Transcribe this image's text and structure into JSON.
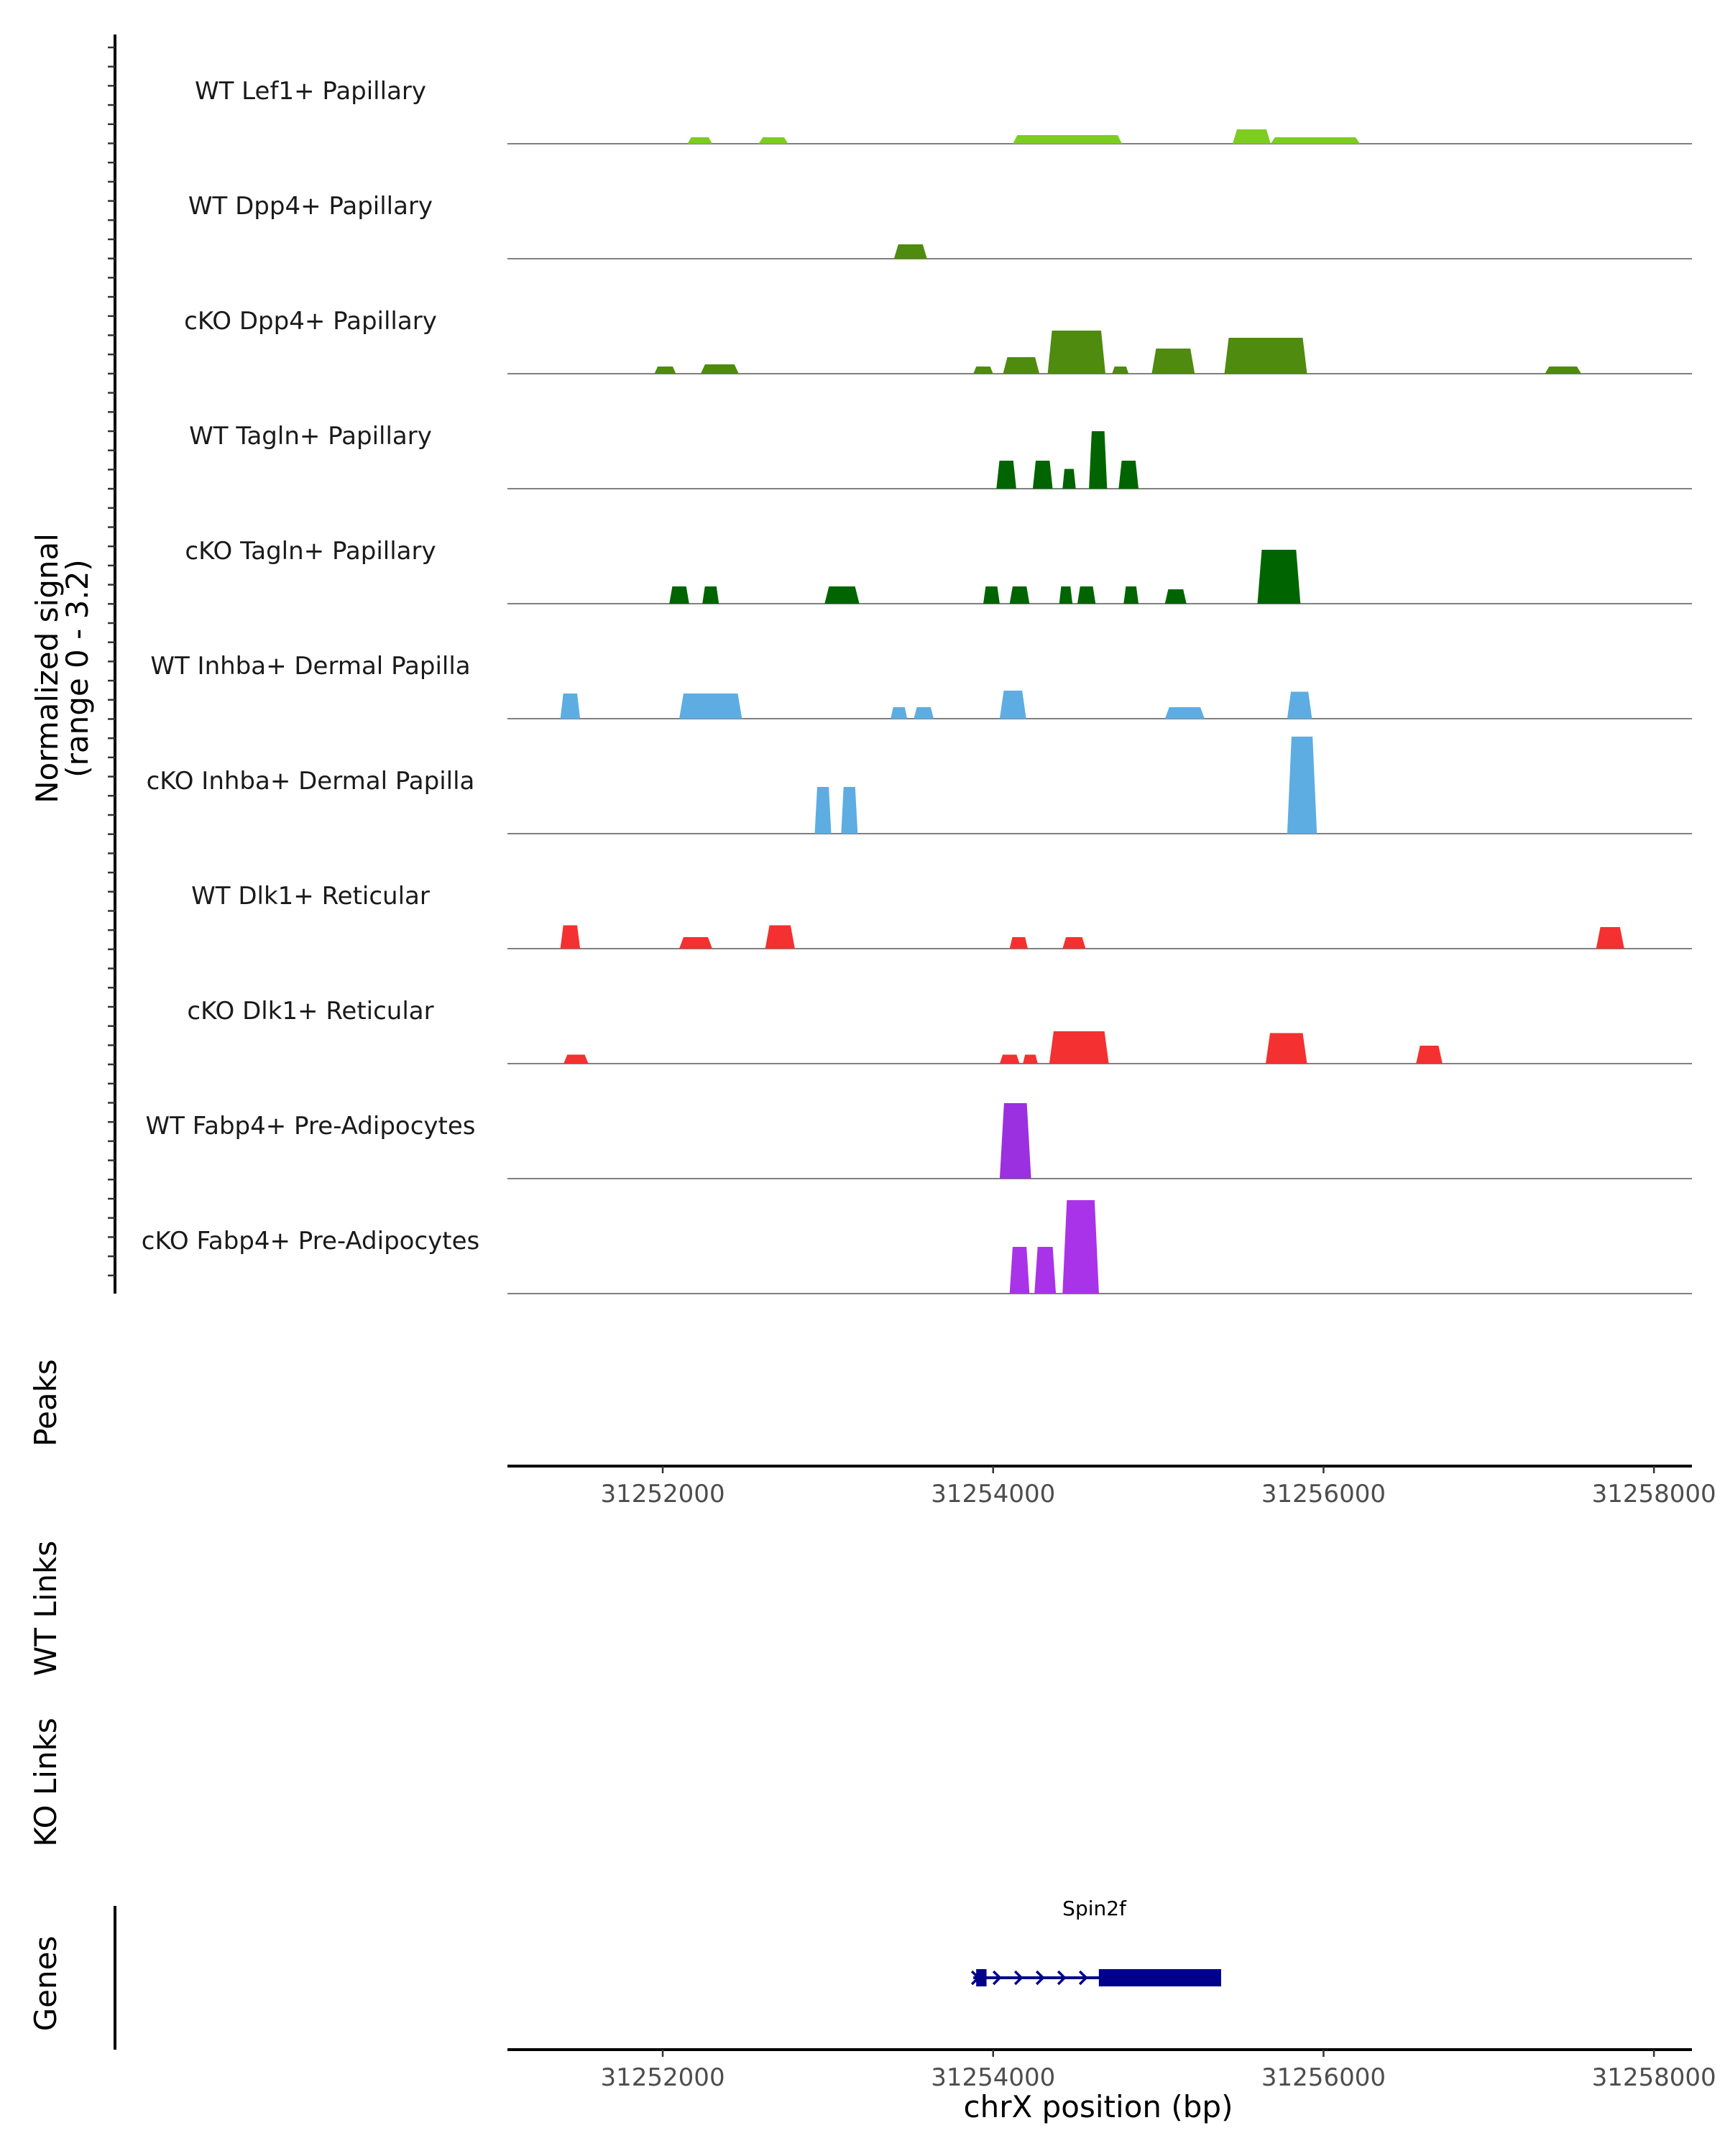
{
  "chart_data": {
    "type": "area",
    "title": "",
    "ylabel": "Normalized signal",
    "ylabel_range": "(range 0 - 3.2)",
    "ylim": [
      0,
      3.2
    ],
    "xlabel": "chrX position (bp)",
    "xlim": [
      31251060,
      31258230
    ],
    "xticks": [
      31252000,
      31254000,
      31256000,
      31258000
    ],
    "xtick_labels": [
      "31252000",
      "31254000",
      "31256000",
      "31258000"
    ],
    "tracks": [
      {
        "name": "WT Lef1+ Papillary",
        "color": "#7CCD1F",
        "peaks": [
          [
            31252150,
            31252300,
            0.18
          ],
          [
            31252580,
            31252760,
            0.18
          ],
          [
            31254120,
            31254780,
            0.24
          ],
          [
            31255450,
            31255680,
            0.4
          ],
          [
            31255680,
            31256220,
            0.18
          ]
        ]
      },
      {
        "name": "WT Dpp4+ Papillary",
        "color": "#4E8B0E",
        "peaks": [
          [
            31253400,
            31253600,
            0.4
          ]
        ]
      },
      {
        "name": "cKO Dpp4+ Papillary",
        "color": "#4E8B0E",
        "peaks": [
          [
            31251950,
            31252080,
            0.2
          ],
          [
            31252230,
            31252460,
            0.26
          ],
          [
            31253880,
            31254000,
            0.2
          ],
          [
            31254060,
            31254280,
            0.46
          ],
          [
            31254330,
            31254680,
            1.2
          ],
          [
            31254720,
            31254820,
            0.2
          ],
          [
            31254960,
            31255220,
            0.7
          ],
          [
            31255400,
            31255900,
            1.0
          ],
          [
            31257340,
            31257560,
            0.2
          ]
        ]
      },
      {
        "name": "WT Tagln+ Papillary",
        "color": "#006400",
        "peaks": [
          [
            31254020,
            31254140,
            0.78
          ],
          [
            31254240,
            31254360,
            0.78
          ],
          [
            31254420,
            31254500,
            0.55
          ],
          [
            31254580,
            31254690,
            1.6
          ],
          [
            31254760,
            31254880,
            0.78
          ]
        ]
      },
      {
        "name": "cKO Tagln+ Papillary",
        "color": "#006400",
        "peaks": [
          [
            31252040,
            31252160,
            0.48
          ],
          [
            31252240,
            31252340,
            0.48
          ],
          [
            31252980,
            31253190,
            0.48
          ],
          [
            31253940,
            31254040,
            0.48
          ],
          [
            31254100,
            31254220,
            0.48
          ],
          [
            31254400,
            31254480,
            0.48
          ],
          [
            31254510,
            31254620,
            0.48
          ],
          [
            31254790,
            31254880,
            0.48
          ],
          [
            31255040,
            31255170,
            0.4
          ],
          [
            31255600,
            31255860,
            1.5
          ]
        ]
      },
      {
        "name": "WT Inhba+ Dermal Papilla",
        "color": "#5DADE2",
        "peaks": [
          [
            31251380,
            31251500,
            0.7
          ],
          [
            31252100,
            31252480,
            0.7
          ],
          [
            31253380,
            31253480,
            0.32
          ],
          [
            31253520,
            31253640,
            0.32
          ],
          [
            31254040,
            31254200,
            0.78
          ],
          [
            31255040,
            31255280,
            0.32
          ],
          [
            31255780,
            31255930,
            0.75
          ]
        ]
      },
      {
        "name": "cKO Inhba+ Dermal Papilla",
        "color": "#5DADE2",
        "peaks": [
          [
            31252920,
            31253020,
            1.3
          ],
          [
            31253080,
            31253180,
            1.3
          ],
          [
            31255780,
            31255960,
            2.7
          ]
        ]
      },
      {
        "name": "WT Dlk1+ Reticular",
        "color": "#F53030",
        "peaks": [
          [
            31251380,
            31251500,
            0.65
          ],
          [
            31252100,
            31252300,
            0.32
          ],
          [
            31252620,
            31252800,
            0.65
          ],
          [
            31254100,
            31254210,
            0.32
          ],
          [
            31254420,
            31254560,
            0.32
          ],
          [
            31257650,
            31257820,
            0.6
          ]
        ]
      },
      {
        "name": "cKO Dlk1+ Reticular",
        "color": "#F53030",
        "peaks": [
          [
            31251400,
            31251550,
            0.25
          ],
          [
            31254040,
            31254160,
            0.25
          ],
          [
            31254180,
            31254270,
            0.25
          ],
          [
            31254340,
            31254700,
            0.9
          ],
          [
            31255650,
            31255900,
            0.85
          ],
          [
            31256560,
            31256720,
            0.5
          ]
        ]
      },
      {
        "name": "WT Fabp4+ Pre-Adipocytes",
        "color": "#9B30E0",
        "peaks": [
          [
            31254040,
            31254230,
            2.1
          ]
        ]
      },
      {
        "name": "cKO Fabp4+ Pre-Adipocytes",
        "color": "#A933E8",
        "peaks": [
          [
            31254100,
            31254220,
            1.3
          ],
          [
            31254250,
            31254380,
            1.3
          ],
          [
            31254420,
            31254640,
            2.6
          ]
        ]
      }
    ],
    "panels": {
      "peaks_label": "Peaks",
      "wt_links_label": "WT Links",
      "ko_links_label": "KO Links",
      "genes_label": "Genes"
    },
    "gene": {
      "name": "Spin2f",
      "color": "#00008B",
      "start": 31253880,
      "end": 31255380,
      "thick_start": 31254640,
      "thick_end": 31255380,
      "first_exon": [
        31253880,
        31253960
      ],
      "strand": "+"
    }
  }
}
